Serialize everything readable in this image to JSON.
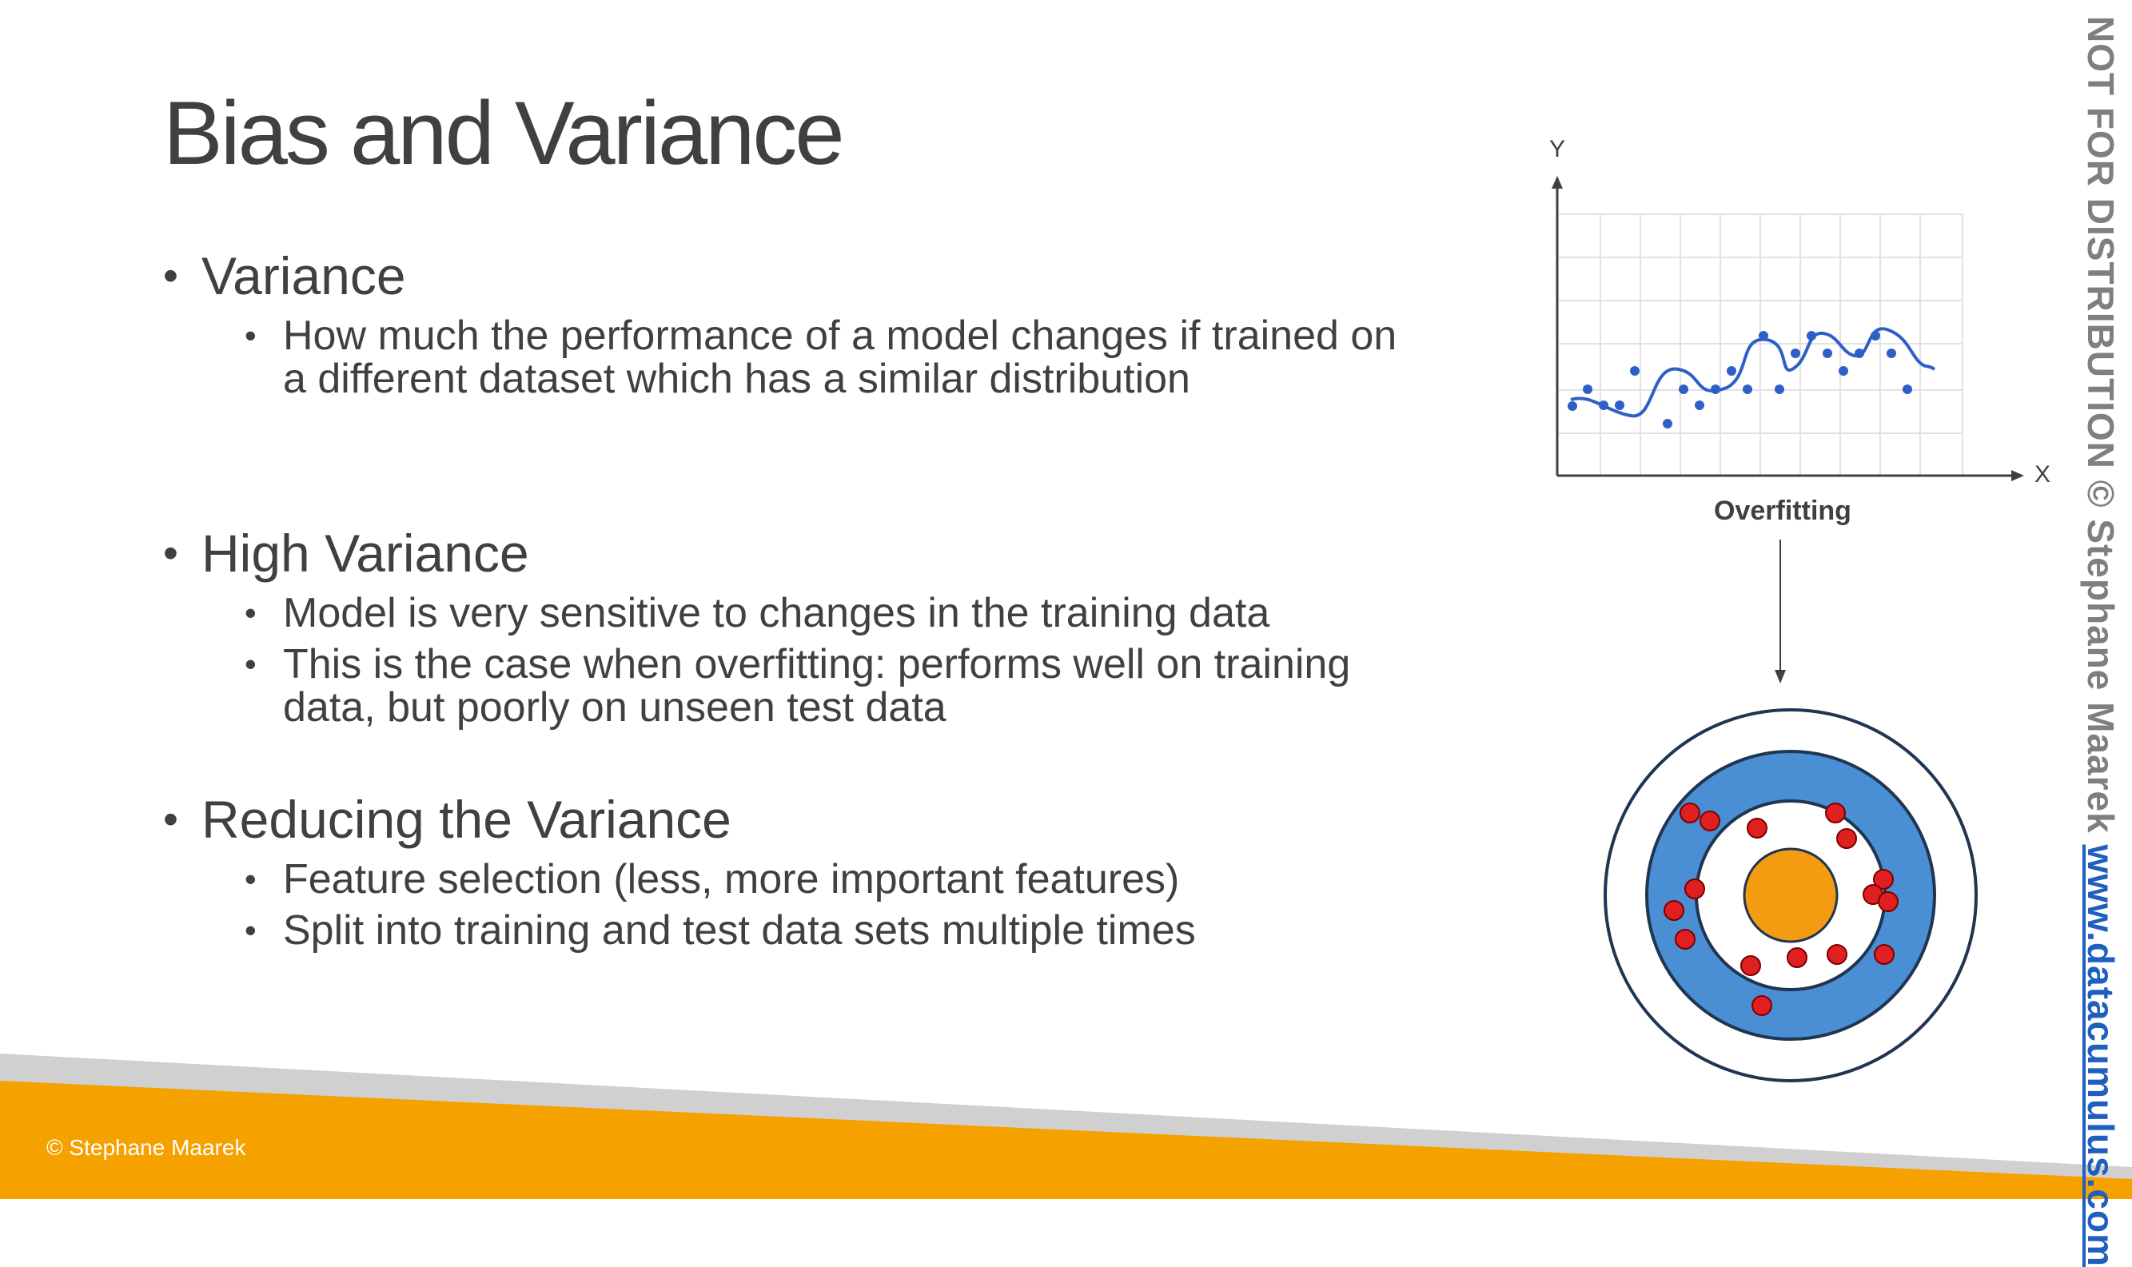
{
  "title": "Bias and Variance",
  "sections": [
    {
      "heading": "Variance",
      "items": [
        "How much the performance of a model changes if trained on a different dataset which has a similar distribution"
      ]
    },
    {
      "heading": "High Variance",
      "items": [
        "Model is very sensitive to changes in the training data",
        "This is the case when overfitting: performs well on training data, but poorly on unseen test data"
      ]
    },
    {
      "heading": "Reducing the Variance",
      "items": [
        "Feature selection (less, more important features)",
        "Split into training and test data sets multiple times"
      ]
    }
  ],
  "figure": {
    "caption": "Overfitting",
    "x_axis_label": "X",
    "y_axis_label": "Y"
  },
  "footer": "© Stephane Maarek",
  "watermark": {
    "text": "NOT FOR DISTRIBUTION © Stephane Maarek ",
    "link": "www.datacumulus.com"
  },
  "colors": {
    "accent_orange": "#f5a100",
    "band_gray": "#d0d0d0",
    "target_blue": "#4a8fd4",
    "target_bullseye": "#f39c12",
    "hit_red": "#e02020",
    "curve_blue": "#2e5fc7",
    "link_blue": "#1f5fbf"
  }
}
